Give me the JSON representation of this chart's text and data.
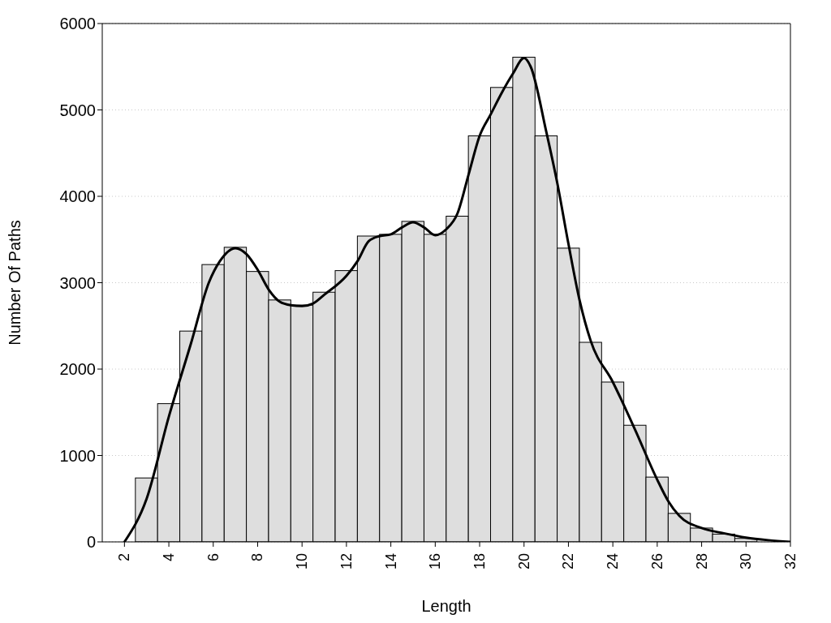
{
  "chart_data": {
    "type": "histogram",
    "xlabel": "Length",
    "ylabel": "Number Of Paths",
    "bins": [
      2.5,
      3.5,
      4.5,
      5.5,
      6.5,
      7.5,
      8.5,
      9.5,
      10.5,
      11.5,
      12.5,
      13.5,
      14.5,
      15.5,
      16.5,
      17.5,
      18.5,
      19.5,
      20.5,
      21.5,
      22.5,
      23.5,
      24.5,
      25.5,
      26.5,
      27.5,
      28.5,
      29.5,
      30.5,
      31.5
    ],
    "values": [
      740,
      1600,
      2440,
      3210,
      3410,
      3130,
      2800,
      2740,
      2890,
      3140,
      3540,
      3560,
      3710,
      3560,
      3770,
      4700,
      5260,
      5610,
      4700,
      3400,
      2310,
      1850,
      1350,
      750,
      330,
      160,
      90,
      40,
      null
    ],
    "color": "#dedede",
    "series": [
      {
        "type": "line",
        "color": "#000000",
        "x": [
          2,
          3,
          4,
          5,
          5.8,
          6.3,
          7,
          7.5,
          8,
          8.5,
          9,
          9.5,
          10,
          10.5,
          11,
          12,
          12.5,
          13,
          13.5,
          14,
          14.5,
          15,
          15.5,
          16,
          16.5,
          17,
          17.5,
          18,
          18.5,
          19,
          19.5,
          20,
          20.3,
          21,
          21.5,
          22,
          22.5,
          23,
          24,
          25,
          26,
          26.5,
          27,
          28,
          29,
          30,
          31,
          32
        ],
        "values": [
          0,
          500,
          1450,
          2300,
          3000,
          3250,
          3400,
          3330,
          3150,
          2920,
          2780,
          2740,
          2730,
          2760,
          2860,
          3080,
          3250,
          3480,
          3540,
          3560,
          3640,
          3700,
          3640,
          3550,
          3620,
          3800,
          4250,
          4700,
          4950,
          5200,
          5420,
          5600,
          5500,
          4750,
          4150,
          3450,
          2800,
          2330,
          1850,
          1300,
          720,
          470,
          300,
          160,
          100,
          50,
          20,
          0
        ]
      }
    ],
    "xlim": [
      1,
      32
    ],
    "xticks": [
      2,
      4,
      6,
      8,
      10,
      12,
      14,
      16,
      18,
      20,
      22,
      24,
      26,
      28,
      30,
      32
    ],
    "ylim": [
      0,
      6000
    ],
    "yticks": [
      0,
      1000,
      2000,
      3000,
      4000,
      5000,
      6000
    ],
    "grid": "y"
  }
}
